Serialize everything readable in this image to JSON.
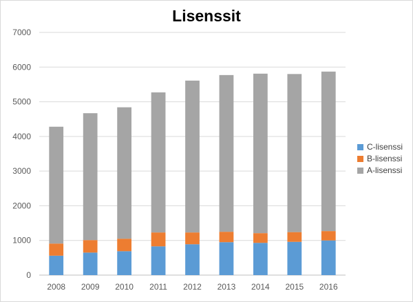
{
  "chart_data": {
    "type": "bar",
    "stacked": true,
    "title": "Lisenssit",
    "xlabel": "",
    "ylabel": "",
    "categories": [
      "2008",
      "2009",
      "2010",
      "2011",
      "2012",
      "2013",
      "2014",
      "2015",
      "2016"
    ],
    "series": [
      {
        "name": "C-lisenssi",
        "color": "#5B9BD5",
        "values": [
          560,
          650,
          690,
          830,
          890,
          950,
          930,
          960,
          1000
        ]
      },
      {
        "name": "B-lisenssi",
        "color": "#ED7D31",
        "values": [
          350,
          360,
          360,
          400,
          340,
          300,
          280,
          280,
          270
        ]
      },
      {
        "name": "A-lisenssi",
        "color": "#A5A5A5",
        "values": [
          3370,
          3660,
          3790,
          4040,
          4380,
          4520,
          4600,
          4560,
          4600
        ]
      }
    ],
    "ylim": [
      0,
      7000
    ],
    "yticks": [
      0,
      1000,
      2000,
      3000,
      4000,
      5000,
      6000,
      7000
    ],
    "grid": true,
    "legend_position": "right"
  }
}
